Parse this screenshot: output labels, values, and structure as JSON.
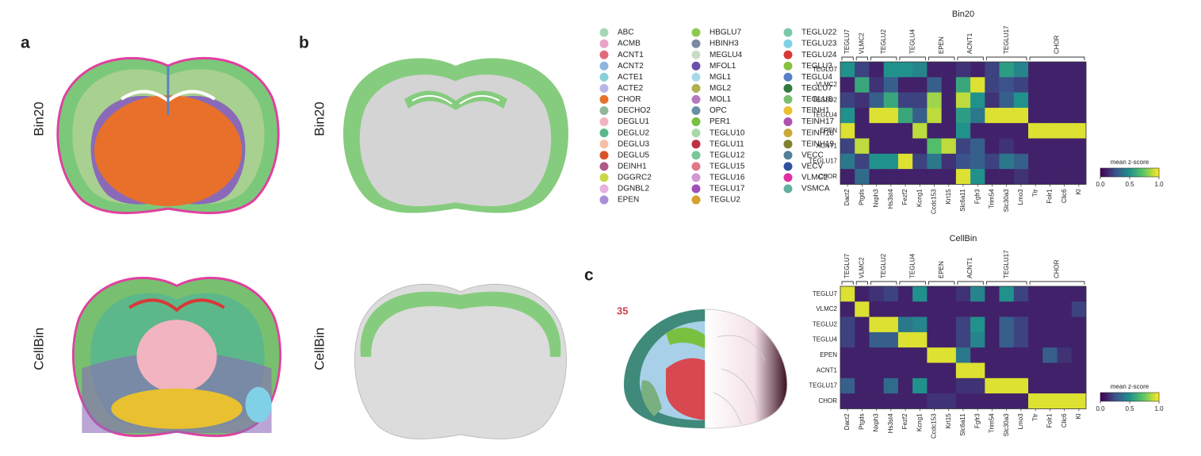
{
  "panel_a": {
    "label": "a",
    "row_labels": [
      "Bin20",
      "CellBin"
    ]
  },
  "panel_b": {
    "label": "b",
    "row_labels": [
      "Bin20",
      "CellBin"
    ]
  },
  "panel_c": {
    "label": "c",
    "atlas_number": "35"
  },
  "legend": [
    {
      "name": "ABC",
      "color": "#a6d7b4"
    },
    {
      "name": "ACMB",
      "color": "#e8a3c8"
    },
    {
      "name": "ACNT1",
      "color": "#e06a7a"
    },
    {
      "name": "ACNT2",
      "color": "#8fb4e0"
    },
    {
      "name": "ACTE1",
      "color": "#88d0d8"
    },
    {
      "name": "ACTE2",
      "color": "#b9b4e6"
    },
    {
      "name": "CHOR",
      "color": "#e8702a"
    },
    {
      "name": "DECHO2",
      "color": "#8fb89a"
    },
    {
      "name": "DEGLU1",
      "color": "#f2b4c0"
    },
    {
      "name": "DEGLU2",
      "color": "#5cb88a"
    },
    {
      "name": "DEGLU3",
      "color": "#f4c0a8"
    },
    {
      "name": "DEGLU5",
      "color": "#d9542a"
    },
    {
      "name": "DEINH1",
      "color": "#b05a8a"
    },
    {
      "name": "DGGRC2",
      "color": "#c8d84a"
    },
    {
      "name": "DGNBL2",
      "color": "#e8b0e0"
    },
    {
      "name": "EPEN",
      "color": "#a890d8"
    },
    {
      "name": "HBGLU7",
      "color": "#8fc850"
    },
    {
      "name": "HBINH3",
      "color": "#7a8aa0"
    },
    {
      "name": "MEGLU4",
      "color": "#c8dcc8"
    },
    {
      "name": "MFOL1",
      "color": "#6a50a8"
    },
    {
      "name": "MGL1",
      "color": "#a8d8e8"
    },
    {
      "name": "MGL2",
      "color": "#b0b050"
    },
    {
      "name": "MOL1",
      "color": "#b878c0"
    },
    {
      "name": "OPC",
      "color": "#6a90a8"
    },
    {
      "name": "PER1",
      "color": "#78c040"
    },
    {
      "name": "TEGLU10",
      "color": "#a8d8a8"
    },
    {
      "name": "TEGLU11",
      "color": "#c03040"
    },
    {
      "name": "TEGLU12",
      "color": "#78c898"
    },
    {
      "name": "TEGLU15",
      "color": "#e07888"
    },
    {
      "name": "TEGLU16",
      "color": "#d098d0"
    },
    {
      "name": "TEGLU17",
      "color": "#a050b8"
    },
    {
      "name": "TEGLU2",
      "color": "#d8a030"
    },
    {
      "name": "TEGLU22",
      "color": "#7ac8a8"
    },
    {
      "name": "TEGLU23",
      "color": "#80d0e8"
    },
    {
      "name": "TEGLU24",
      "color": "#d83838"
    },
    {
      "name": "TEGLU3",
      "color": "#88c040"
    },
    {
      "name": "TEGLU4",
      "color": "#5880c8"
    },
    {
      "name": "TEGLU7",
      "color": "#307840"
    },
    {
      "name": "TEGLU8",
      "color": "#78c070"
    },
    {
      "name": "TEINH1",
      "color": "#e8c030"
    },
    {
      "name": "TEINH17",
      "color": "#b050b0"
    },
    {
      "name": "TEINH18",
      "color": "#c8a838"
    },
    {
      "name": "TEINH19",
      "color": "#808030"
    },
    {
      "name": "VECC",
      "color": "#508098"
    },
    {
      "name": "VECV",
      "color": "#3050a0"
    },
    {
      "name": "VLMC2",
      "color": "#e030a0"
    },
    {
      "name": "VSMCA",
      "color": "#60b0a0"
    }
  ],
  "heatmaps": [
    {
      "title": "Bin20",
      "rows": [
        "TEGLU7",
        "VLMC2",
        "TEGLU2",
        "TEGLU4",
        "EPEN",
        "ACNT1",
        "TEGLU17",
        "CHOR"
      ],
      "column_groups": [
        {
          "label": "TEGLU7",
          "genes": [
            "Dact2"
          ]
        },
        {
          "label": "VLMC2",
          "genes": [
            "Ptgds"
          ]
        },
        {
          "label": "TEGLU2",
          "genes": [
            "Nxph3",
            "Hs3st4"
          ]
        },
        {
          "label": "TEGLU4",
          "genes": [
            "Fezf2",
            "Kcng1"
          ]
        },
        {
          "label": "EPEN",
          "genes": [
            "Ccdc153",
            "Krt15"
          ]
        },
        {
          "label": "ACNT1",
          "genes": [
            "Slc6a11",
            "Fgfr3"
          ]
        },
        {
          "label": "TEGLU17",
          "genes": [
            "Trim54",
            "Slc30a3",
            "Lmo3"
          ]
        },
        {
          "label": "CHOR",
          "genes": [
            "Ttr",
            "Folr1",
            "Clic6",
            "Kl"
          ]
        }
      ],
      "values": [
        [
          0.5,
          0.2,
          0.1,
          0.5,
          0.5,
          0.45,
          0.1,
          0.1,
          0.15,
          0.1,
          0.2,
          0.55,
          0.45,
          0.1,
          0.1,
          0.1,
          0.1
        ],
        [
          0.1,
          0.6,
          0.15,
          0.3,
          0.1,
          0.1,
          0.3,
          0.1,
          0.6,
          0.95,
          0.2,
          0.25,
          0.2,
          0.1,
          0.1,
          0.1,
          0.1
        ],
        [
          0.2,
          0.15,
          0.3,
          0.6,
          0.2,
          0.2,
          0.85,
          0.1,
          0.9,
          0.5,
          0.15,
          0.3,
          0.5,
          0.1,
          0.1,
          0.1,
          0.1
        ],
        [
          0.5,
          0.1,
          0.95,
          0.95,
          0.6,
          0.3,
          0.9,
          0.1,
          0.55,
          0.4,
          0.95,
          0.95,
          0.95,
          0.1,
          0.1,
          0.1,
          0.1
        ],
        [
          0.95,
          0.1,
          0.1,
          0.1,
          0.1,
          0.9,
          0.1,
          0.1,
          0.5,
          0.1,
          0.1,
          0.1,
          0.1,
          0.95,
          0.95,
          0.95,
          0.95
        ],
        [
          0.2,
          0.9,
          0.1,
          0.1,
          0.1,
          0.1,
          0.7,
          0.9,
          0.2,
          0.3,
          0.1,
          0.15,
          0.1,
          0.1,
          0.1,
          0.1,
          0.1
        ],
        [
          0.4,
          0.2,
          0.5,
          0.5,
          0.95,
          0.2,
          0.4,
          0.15,
          0.25,
          0.3,
          0.2,
          0.4,
          0.3,
          0.1,
          0.1,
          0.1,
          0.1
        ],
        [
          0.1,
          0.35,
          0.1,
          0.1,
          0.1,
          0.1,
          0.1,
          0.1,
          0.95,
          0.5,
          0.1,
          0.1,
          0.15,
          0.1,
          0.1,
          0.1,
          0.1
        ]
      ],
      "colormap": "viridis",
      "colorbar": {
        "label": "mean z-score",
        "lim": [
          0,
          1
        ],
        "ticks": [
          {
            "value": 0,
            "label": "0.0"
          },
          0.5,
          {
            "value": 1,
            "label": "1.0"
          }
        ]
      }
    },
    {
      "title": "CellBin",
      "rows": [
        "TEGLU7",
        "VLMC2",
        "TEGLU2",
        "TEGLU4",
        "EPEN",
        "ACNT1",
        "TEGLU17",
        "CHOR"
      ],
      "column_groups": [
        {
          "label": "TEGLU7",
          "genes": [
            "Dact2"
          ]
        },
        {
          "label": "VLMC2",
          "genes": [
            "Ptgds"
          ]
        },
        {
          "label": "TEGLU2",
          "genes": [
            "Nxph3",
            "Hs3st4"
          ]
        },
        {
          "label": "TEGLU4",
          "genes": [
            "Fezf2",
            "Kcng1"
          ]
        },
        {
          "label": "EPEN",
          "genes": [
            "Ccdc153",
            "Krt15"
          ]
        },
        {
          "label": "ACNT1",
          "genes": [
            "Slc6a11",
            "Fgfr3"
          ]
        },
        {
          "label": "TEGLU17",
          "genes": [
            "Trim54",
            "Slc30a3",
            "Lmo3"
          ]
        },
        {
          "label": "CHOR",
          "genes": [
            "Ttr",
            "Folr1",
            "Clic6",
            "Kl"
          ]
        }
      ],
      "values": [
        [
          0.95,
          0.1,
          0.15,
          0.2,
          0.1,
          0.5,
          0.1,
          0.1,
          0.15,
          0.45,
          0.1,
          0.5,
          0.2,
          0.1,
          0.1,
          0.1,
          0.1
        ],
        [
          0.1,
          0.95,
          0.1,
          0.1,
          0.1,
          0.1,
          0.1,
          0.1,
          0.1,
          0.1,
          0.1,
          0.1,
          0.1,
          0.1,
          0.1,
          0.1,
          0.2
        ],
        [
          0.2,
          0.1,
          0.95,
          0.95,
          0.4,
          0.45,
          0.1,
          0.1,
          0.2,
          0.5,
          0.1,
          0.3,
          0.2,
          0.1,
          0.1,
          0.1,
          0.1
        ],
        [
          0.2,
          0.1,
          0.3,
          0.3,
          0.95,
          0.95,
          0.1,
          0.1,
          0.2,
          0.45,
          0.1,
          0.3,
          0.2,
          0.1,
          0.1,
          0.1,
          0.1
        ],
        [
          0.1,
          0.1,
          0.1,
          0.1,
          0.1,
          0.1,
          0.95,
          0.95,
          0.4,
          0.1,
          0.1,
          0.1,
          0.1,
          0.1,
          0.3,
          0.15,
          0.1
        ],
        [
          0.1,
          0.1,
          0.1,
          0.1,
          0.1,
          0.1,
          0.1,
          0.1,
          0.95,
          0.95,
          0.1,
          0.1,
          0.1,
          0.1,
          0.1,
          0.1,
          0.1
        ],
        [
          0.3,
          0.1,
          0.1,
          0.35,
          0.1,
          0.5,
          0.1,
          0.1,
          0.15,
          0.15,
          0.95,
          0.95,
          0.95,
          0.1,
          0.1,
          0.1,
          0.1
        ],
        [
          0.1,
          0.1,
          0.1,
          0.1,
          0.1,
          0.1,
          0.15,
          0.15,
          0.1,
          0.1,
          0.1,
          0.1,
          0.1,
          0.95,
          0.95,
          0.95,
          0.95
        ]
      ],
      "colormap": "viridis",
      "colorbar": {
        "label": "mean z-score",
        "lim": [
          0,
          1
        ],
        "ticks": [
          {
            "value": 0,
            "label": "0.0"
          },
          0.5,
          {
            "value": 1,
            "label": "1.0"
          }
        ]
      }
    }
  ]
}
